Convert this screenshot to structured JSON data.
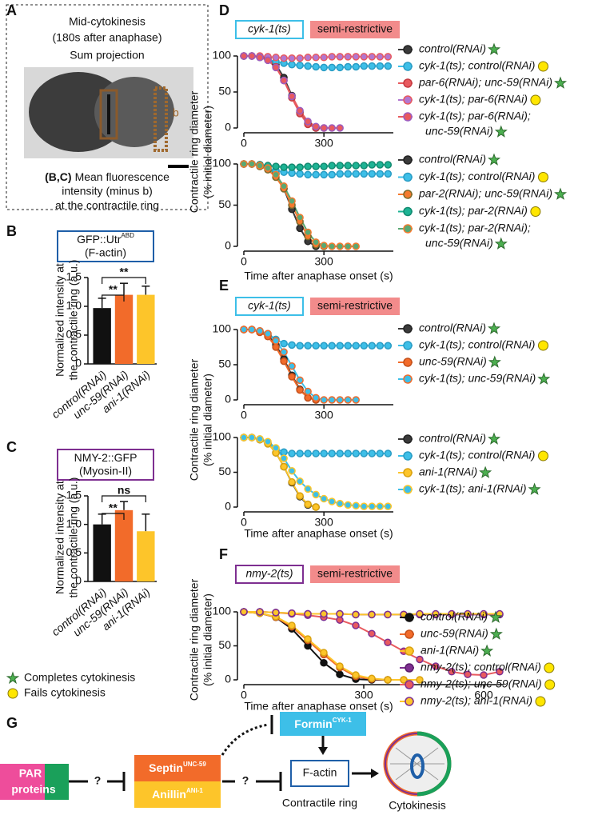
{
  "panel_labels": [
    "A",
    "B",
    "C",
    "D",
    "E",
    "F",
    "G"
  ],
  "panel_a": {
    "title_lines": [
      "Mid-cytokinesis",
      "(180s after anaphase)",
      "Sum projection"
    ],
    "region_label": "b",
    "caption_ref": "(B,C)",
    "caption_lines": [
      "Mean fluorescence",
      "intensity (minus b)",
      "at the contractile ring"
    ]
  },
  "outcome_legend": {
    "completes": "Completes cytokinesis",
    "fails": "Fails cytokinesis"
  },
  "chart_data": [
    {
      "type": "bar",
      "header": {
        "text": "GFP::Utr",
        "superscript": "ABD",
        "subtext": "(F-actin)"
      },
      "header_color": "#1f5fa8",
      "ylabel": [
        "Normalized intensity at",
        "the contractile ring (a.u.)"
      ],
      "categories": [
        "control(RNAi)",
        "unc-59(RNAi)",
        "ani-1(RNAi)"
      ],
      "values": [
        0.97,
        1.2,
        1.2
      ],
      "errors": [
        0.17,
        0.2,
        0.15
      ],
      "colors": [
        "#111111",
        "#f26b2a",
        "#fdc52a"
      ],
      "ylim": [
        0,
        1.5
      ],
      "yticks": [
        0,
        0.5,
        {
          "value": 1,
          "label": "1.0"
        },
        1.5
      ],
      "annotations": [
        "**",
        "**"
      ]
    },
    {
      "type": "bar",
      "header": {
        "text": "NMY-2::GFP",
        "superscript": "",
        "subtext": "(Myosin-II)"
      },
      "header_color": "#7e2f91",
      "ylabel": [
        "Normalized intensity at",
        "the contractile ring (a.u.)"
      ],
      "categories": [
        "control(RNAi)",
        "unc-59(RNAi)",
        "ani-1(RNAi)"
      ],
      "values": [
        1.0,
        1.25,
        0.88
      ],
      "errors": [
        0.18,
        0.15,
        0.3
      ],
      "colors": [
        "#111111",
        "#f26b2a",
        "#fdc52a"
      ],
      "ylim": [
        0,
        1.5
      ],
      "yticks": [
        0,
        0.5,
        {
          "value": 1,
          "label": "1.0"
        },
        1.5
      ],
      "annotations": [
        "**",
        "ns"
      ]
    },
    {
      "type": "line",
      "strain_label": "cyk-1(ts)",
      "strain_color": "#3dbfe8",
      "condition_label": "semi-restrictive",
      "condition_color": "#f28b8b",
      "ylabel": [
        "Contractile ring diameter",
        "(% initial diameter)"
      ],
      "x": [
        0,
        30,
        60,
        90,
        120,
        150,
        180,
        210,
        240,
        270,
        300,
        330,
        360,
        390,
        420,
        450,
        480,
        510,
        540
      ],
      "xlim": [
        0,
        560
      ],
      "ylim": [
        0,
        100
      ],
      "xticks": [
        0,
        300
      ],
      "yticks": [
        0,
        50,
        100
      ],
      "series": [
        {
          "name": "control(RNAi)",
          "color": "#3a3a3a",
          "edgecolor": "#222222",
          "outcome": "completes",
          "values": [
            100,
            100,
            99,
            97,
            88,
            70,
            45,
            22,
            6,
            0,
            null,
            null,
            null,
            null,
            null,
            null,
            null,
            null,
            null
          ]
        },
        {
          "name": "cyk-1(ts); control(RNAi)",
          "color": "#3dbfe8",
          "edgecolor": "#2a9cc4",
          "outcome": "fails",
          "values": [
            100,
            100,
            98,
            95,
            92,
            90,
            88,
            87,
            86,
            85,
            84,
            84,
            84,
            85,
            85,
            86,
            86,
            86,
            86
          ]
        },
        {
          "name": "par-6(RNAi); unc-59(RNAi)",
          "color": "#e85a5f",
          "edgecolor": "#c43a40",
          "outcome": "completes",
          "values": [
            100,
            100,
            98,
            95,
            85,
            66,
            42,
            20,
            5,
            0,
            0,
            null,
            null,
            null,
            null,
            null,
            null,
            null,
            null
          ]
        },
        {
          "name": "cyk-1(ts); par-6(RNAi)",
          "color": "#b277d0",
          "edgecolor": "#e85a5f",
          "outcome": "fails",
          "values": [
            100,
            100,
            100,
            99,
            98,
            97,
            97,
            97,
            98,
            98,
            98,
            99,
            99,
            99,
            99,
            99,
            99,
            99,
            99
          ]
        },
        {
          "name": [
            "cyk-1(ts); par-6(RNAi);",
            "unc-59(RNAi)"
          ],
          "color": "#e85a5f",
          "edgecolor": "#9b5cc0",
          "outcome": "completes",
          "values": [
            100,
            100,
            98,
            94,
            84,
            66,
            44,
            24,
            9,
            2,
            0,
            0,
            0,
            null,
            null,
            null,
            null,
            null,
            null
          ]
        }
      ]
    },
    {
      "type": "line",
      "xlabel": "Time after anaphase onset (s)",
      "x": [
        0,
        30,
        60,
        90,
        120,
        150,
        180,
        210,
        240,
        270,
        300,
        330,
        360,
        390,
        420,
        450,
        480,
        510,
        540
      ],
      "xlim": [
        0,
        560
      ],
      "ylim": [
        0,
        100
      ],
      "xticks": [
        0,
        300
      ],
      "yticks": [
        0,
        50,
        100
      ],
      "series": [
        {
          "name": "control(RNAi)",
          "color": "#3a3a3a",
          "edgecolor": "#222222",
          "outcome": "completes",
          "values": [
            100,
            100,
            99,
            97,
            88,
            70,
            45,
            22,
            6,
            0,
            null,
            null,
            null,
            null,
            null,
            null,
            null,
            null,
            null
          ]
        },
        {
          "name": "cyk-1(ts); control(RNAi)",
          "color": "#3dbfe8",
          "edgecolor": "#2a9cc4",
          "outcome": "fails",
          "values": [
            100,
            100,
            98,
            95,
            92,
            90,
            89,
            88,
            87,
            87,
            87,
            87,
            88,
            88,
            88,
            88,
            88,
            88,
            88
          ]
        },
        {
          "name": "par-2(RNAi); unc-59(RNAi)",
          "color": "#f47a2e",
          "edgecolor": "#7a6a2a",
          "outcome": "completes",
          "values": [
            100,
            100,
            97,
            93,
            84,
            70,
            50,
            30,
            12,
            2,
            0,
            null,
            null,
            null,
            null,
            null,
            null,
            null,
            null
          ]
        },
        {
          "name": "cyk-1(ts); par-2(RNAi)",
          "color": "#1db394",
          "edgecolor": "#128a70",
          "outcome": "fails",
          "values": [
            100,
            100,
            99,
            98,
            97,
            96,
            96,
            96,
            97,
            97,
            97,
            98,
            98,
            98,
            98,
            98,
            99,
            99,
            99
          ]
        },
        {
          "name": [
            "cyk-1(ts); par-2(RNAi);",
            "unc-59(RNAi)"
          ],
          "color": "#5aa873",
          "edgecolor": "#f47a2e",
          "outcome": "completes",
          "values": [
            100,
            100,
            98,
            95,
            87,
            73,
            55,
            35,
            17,
            5,
            1,
            0,
            0,
            0,
            0,
            null,
            null,
            null,
            null
          ]
        }
      ]
    },
    {
      "type": "line",
      "strain_label": "cyk-1(ts)",
      "strain_color": "#3dbfe8",
      "condition_label": "semi-restrictive",
      "condition_color": "#f28b8b",
      "ylabel": [
        "Contractile ring diameter",
        "(% initial diameter)"
      ],
      "x": [
        0,
        30,
        60,
        90,
        120,
        150,
        180,
        210,
        240,
        270,
        300,
        330,
        360,
        390,
        420,
        450,
        480,
        510,
        540
      ],
      "xlim": [
        0,
        560
      ],
      "ylim": [
        0,
        100
      ],
      "xticks": [
        0,
        300
      ],
      "yticks": [
        0,
        50,
        100
      ],
      "series": [
        {
          "name": "control(RNAi)",
          "color": "#3a3a3a",
          "edgecolor": "#222222",
          "outcome": "completes",
          "values": [
            100,
            100,
            97,
            92,
            78,
            58,
            35,
            15,
            3,
            0,
            null,
            null,
            null,
            null,
            null,
            null,
            null,
            null,
            null
          ]
        },
        {
          "name": "cyk-1(ts); control(RNAi)",
          "color": "#3dbfe8",
          "edgecolor": "#2a9cc4",
          "outcome": "fails",
          "values": [
            100,
            100,
            98,
            94,
            86,
            80,
            78,
            77,
            77,
            77,
            77,
            77,
            77,
            77,
            77,
            77,
            77,
            77,
            77
          ]
        },
        {
          "name": "unc-59(RNAi)",
          "color": "#f26b2a",
          "edgecolor": "#c4501a",
          "outcome": "completes",
          "values": [
            100,
            100,
            96,
            90,
            75,
            55,
            33,
            14,
            3,
            0,
            null,
            null,
            null,
            null,
            null,
            null,
            null,
            null,
            null
          ]
        },
        {
          "name": "cyk-1(ts); unc-59(RNAi)",
          "color": "#3dbfe8",
          "edgecolor": "#f26b2a",
          "outcome": "completes",
          "values": [
            100,
            100,
            98,
            94,
            84,
            68,
            48,
            28,
            12,
            3,
            0,
            0,
            0,
            0,
            0,
            null,
            null,
            null,
            null
          ]
        }
      ]
    },
    {
      "type": "line",
      "xlabel": "Time after anaphase onset (s)",
      "x": [
        0,
        30,
        60,
        90,
        120,
        150,
        180,
        210,
        240,
        270,
        300,
        330,
        360,
        390,
        420,
        450,
        480,
        510,
        540
      ],
      "xlim": [
        0,
        560
      ],
      "ylim": [
        0,
        100
      ],
      "xticks": [
        0,
        300
      ],
      "yticks": [
        0,
        50,
        100
      ],
      "series": [
        {
          "name": "control(RNAi)",
          "color": "#3a3a3a",
          "edgecolor": "#222222",
          "outcome": "completes",
          "values": [
            100,
            100,
            97,
            92,
            78,
            58,
            35,
            15,
            3,
            0,
            null,
            null,
            null,
            null,
            null,
            null,
            null,
            null,
            null
          ]
        },
        {
          "name": "cyk-1(ts); control(RNAi)",
          "color": "#3dbfe8",
          "edgecolor": "#2a9cc4",
          "outcome": "fails",
          "values": [
            100,
            100,
            97,
            91,
            84,
            79,
            77,
            77,
            77,
            77,
            77,
            77,
            77,
            77,
            77,
            77,
            77,
            77,
            77
          ]
        },
        {
          "name": "ani-1(RNAi)",
          "color": "#fdc52a",
          "edgecolor": "#d9a210",
          "outcome": "completes",
          "values": [
            100,
            100,
            97,
            91,
            78,
            58,
            36,
            16,
            4,
            0,
            null,
            null,
            null,
            null,
            null,
            null,
            null,
            null,
            null
          ]
        },
        {
          "name": "cyk-1(ts); ani-1(RNAi)",
          "color": "#3dbfe8",
          "edgecolor": "#fdc52a",
          "outcome": "completes",
          "values": [
            100,
            100,
            98,
            94,
            85,
            70,
            52,
            37,
            26,
            18,
            12,
            8,
            5,
            3,
            2,
            1,
            1,
            1,
            1
          ]
        }
      ]
    },
    {
      "type": "line",
      "strain_label": "nmy-2(ts)",
      "strain_color": "#7e2f91",
      "condition_label": "semi-restrictive",
      "condition_color": "#f28b8b",
      "ylabel": [
        "Contractile ring diameter",
        "(% initial diameter)"
      ],
      "xlabel": "Time after anaphase onset (s)",
      "x": [
        0,
        40,
        80,
        120,
        160,
        200,
        240,
        280,
        320,
        360,
        400,
        440,
        480,
        520,
        560,
        600,
        640
      ],
      "xlim": [
        0,
        650
      ],
      "ylim": [
        0,
        100
      ],
      "xticks": [
        0,
        300,
        600
      ],
      "yticks": [
        0,
        50,
        100
      ],
      "series": [
        {
          "name": "control(RNAi)",
          "color": "#111111",
          "edgecolor": "#111111",
          "outcome": "completes",
          "values": [
            100,
            98,
            92,
            75,
            50,
            25,
            8,
            1,
            0,
            0,
            null,
            null,
            null,
            null,
            null,
            null,
            null
          ]
        },
        {
          "name": "unc-59(RNAi)",
          "color": "#f26b2a",
          "edgecolor": "#c4501a",
          "outcome": "completes",
          "values": [
            100,
            98,
            92,
            78,
            58,
            37,
            18,
            5,
            1,
            0,
            0,
            null,
            null,
            null,
            null,
            null,
            null
          ]
        },
        {
          "name": "ani-1(RNAi)",
          "color": "#fdc52a",
          "edgecolor": "#d9a210",
          "outcome": "completes",
          "values": [
            100,
            98,
            93,
            80,
            60,
            40,
            20,
            7,
            2,
            0,
            0,
            0,
            null,
            null,
            null,
            null,
            null
          ]
        },
        {
          "name": "nmy-2(ts); control(RNAi)",
          "color": "#7e2f91",
          "edgecolor": "#5a1d6b",
          "outcome": "fails",
          "values": [
            100,
            100,
            99,
            98,
            97,
            97,
            97,
            96,
            96,
            96,
            96,
            96,
            96,
            96,
            96,
            96,
            96
          ]
        },
        {
          "name": "nmy-2(ts); unc-59(RNAi)",
          "color": "#e85a5f",
          "edgecolor": "#7e2f91",
          "outcome": "fails",
          "values": [
            100,
            100,
            99,
            97,
            95,
            92,
            88,
            80,
            68,
            55,
            42,
            30,
            20,
            12,
            8,
            7,
            12
          ]
        },
        {
          "name": "nmy-2(ts); ani-1(RNAi)",
          "color": "#fdc52a",
          "edgecolor": "#7e2f91",
          "outcome": "fails",
          "values": [
            100,
            100,
            99,
            98,
            97,
            97,
            97,
            96,
            96,
            96,
            96,
            97,
            97,
            97,
            97,
            97,
            97
          ]
        }
      ]
    }
  ],
  "panel_g": {
    "par_proteins": [
      "PAR",
      "proteins"
    ],
    "question_marks": [
      "?",
      "?"
    ],
    "septin": {
      "name": "Septin",
      "superscript": "UNC-59"
    },
    "anillin": {
      "name": "Anillin",
      "superscript": "ANI-1"
    },
    "formin": {
      "name": "Formin",
      "superscript": "CYK-1"
    },
    "factin": "F-actin",
    "contractile_ring": "Contractile ring",
    "cytokinesis": "Cytokinesis"
  }
}
